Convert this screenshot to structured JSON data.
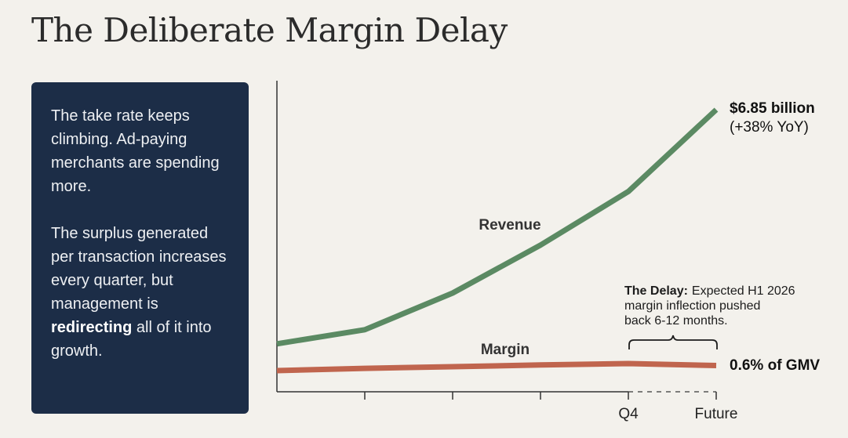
{
  "title": "The Deliberate Margin Delay",
  "panel": {
    "paragraph1": "The take rate keeps climbing. Ad-paying merchants are spending more.",
    "paragraph2_before": "The surplus generated per transaction increases every quarter, but management is ",
    "paragraph2_bold": "redirecting",
    "paragraph2_after": " all of it into growth."
  },
  "chart_data": {
    "type": "line",
    "x": [
      "",
      "",
      "",
      "",
      "Q4",
      "Future"
    ],
    "xlabel": "",
    "ylabel": "",
    "ylim": [
      0,
      100
    ],
    "series": [
      {
        "name": "Revenue",
        "color": "#5b8a63",
        "values": [
          17,
          22,
          35,
          52,
          71,
          100
        ]
      },
      {
        "name": "Margin",
        "color": "#c0654e",
        "values": [
          7.5,
          8.3,
          8.9,
          9.5,
          10.0,
          9.3
        ]
      }
    ],
    "grid": false,
    "annotations": {
      "revenue_end": {
        "value": "$6.85 billion",
        "change": "(+38% YoY)"
      },
      "margin_end": "0.6% of GMV",
      "delay": {
        "label": "The Delay:",
        "text_line1": "Expected H1 2026",
        "text_line2": "margin inflection pushed",
        "text_line3": "back 6-12 months."
      }
    }
  }
}
